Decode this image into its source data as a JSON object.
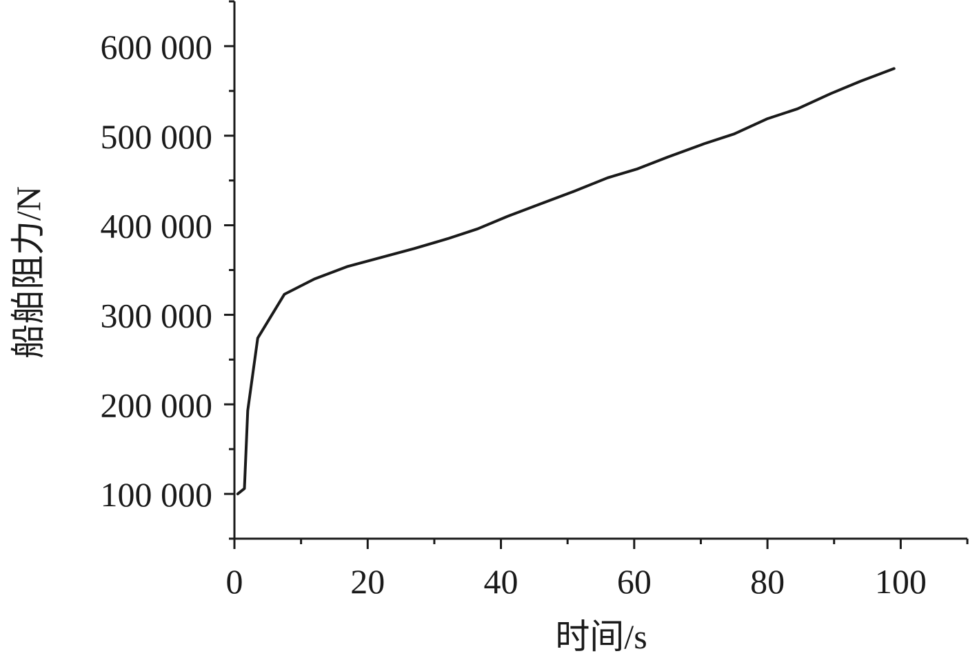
{
  "chart_data": {
    "type": "line",
    "title": "",
    "xlabel": "时间/s",
    "ylabel": "船舶阻力/N",
    "xlim": [
      0,
      110
    ],
    "ylim": [
      50000,
      650000
    ],
    "x_ticks": [
      0,
      20,
      40,
      60,
      80,
      100
    ],
    "x_tick_labels": [
      "0",
      "20",
      "40",
      "60",
      "80",
      "100"
    ],
    "x_minor_ticks": [
      10,
      30,
      50,
      70,
      90,
      110
    ],
    "y_ticks": [
      100000,
      200000,
      300000,
      400000,
      500000,
      600000
    ],
    "y_tick_labels": [
      "100 000",
      "200 000",
      "300 000",
      "400 000",
      "500 000",
      "600 000"
    ],
    "y_minor_ticks": [
      50000,
      150000,
      250000,
      350000,
      450000,
      550000,
      650000
    ],
    "grid": false,
    "line_color": "#1a1a1a",
    "series": [
      {
        "x": [
          0.5,
          1.5,
          2,
          3.5,
          7.5,
          12,
          17,
          22,
          27,
          32,
          36.5,
          41,
          46,
          51,
          56,
          60.5,
          65,
          70.5,
          75,
          80,
          84.5,
          89.5,
          94,
          99
        ],
        "values": [
          100000,
          106000,
          193000,
          274000,
          323000,
          340000,
          354000,
          364000,
          374000,
          385000,
          396000,
          410000,
          424000,
          438000,
          453000,
          463000,
          476000,
          491000,
          502000,
          519000,
          530000,
          547000,
          561000,
          575000
        ]
      }
    ]
  }
}
